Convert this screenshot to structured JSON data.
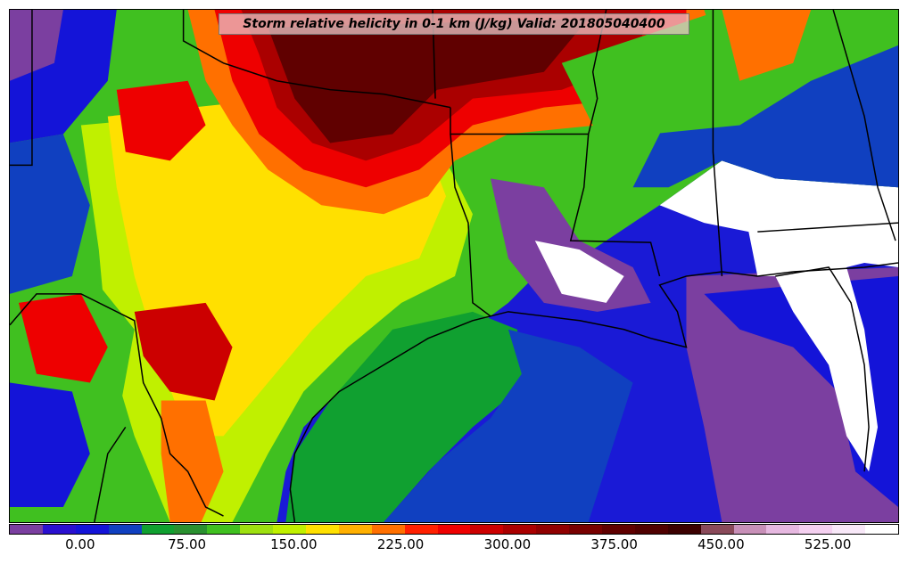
{
  "title": "Storm relative helicity in 0-1 km (J/kg) Valid: 201805040400",
  "colorbar": {
    "colors": [
      "#7b3fa0",
      "#2a10d0",
      "#1414d8",
      "#1040c0",
      "#10a030",
      "#2a9030",
      "#40c020",
      "#9ee010",
      "#c0f000",
      "#ffe000",
      "#ffb000",
      "#ff7000",
      "#ff2000",
      "#ee0000",
      "#cc0000",
      "#aa0000",
      "#900000",
      "#780000",
      "#600000",
      "#500000",
      "#3c0000",
      "#8a4a5a",
      "#c890b8",
      "#e6b8e0",
      "#f4d0f0",
      "#f8e8f8",
      "#ffffff"
    ],
    "min": -50,
    "max": 575,
    "ticks": [
      "0.00",
      "75.00",
      "150.00",
      "225.00",
      "300.00",
      "375.00",
      "450.00",
      "525.00"
    ],
    "tick_values": [
      0,
      75,
      150,
      225,
      300,
      375,
      450,
      525
    ]
  }
}
